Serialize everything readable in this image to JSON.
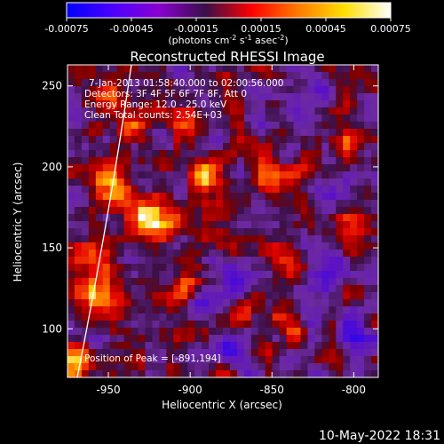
{
  "chart_data": {
    "type": "heatmap",
    "title": "Reconstructed RHESSI Image",
    "colorbar": {
      "ticks": [
        "-0.00075",
        "-0.00045",
        "-0.00015",
        "0.00015",
        "0.00045",
        "0.00075"
      ],
      "tick_values": [
        -0.00075,
        -0.00045,
        -0.00015,
        0.00015,
        0.00045,
        0.00075
      ],
      "range": [
        -0.00075,
        0.00075
      ],
      "label_prefix": "(photons cm",
      "label_sup1": "-2",
      "label_mid": " s",
      "label_sup2": "-1",
      "label_mid2": " asec",
      "label_sup3": "-2",
      "label_suffix": ")",
      "colormap": [
        "#0000ff",
        "#4b00ff",
        "#8a00d0",
        "#3a0f4a",
        "#ff0000",
        "#ff7a00",
        "#ffe000",
        "#ffffff"
      ]
    },
    "xlabel": "Heliocentric X (arcsec)",
    "ylabel": "Heliocentric Y (arcsec)",
    "x_ticks": [
      "-950",
      "-900",
      "-850",
      "-800"
    ],
    "x_tick_values": [
      -950,
      -900,
      -850,
      -800
    ],
    "y_ticks": [
      "100",
      "150",
      "200",
      "250"
    ],
    "y_tick_values": [
      100,
      150,
      200,
      250
    ],
    "xlim": [
      -975,
      -785
    ],
    "ylim": [
      70,
      263
    ],
    "peak": [
      -891,
      194
    ],
    "annotations": {
      "time": "7-Jan-2013 01:58:40.000 to 02:00:56.000",
      "detectors": "Detectors: 3F 4F 5F 6F 7F 8F, Att 0",
      "energy": "Energy Range: 12.0 - 25.0 keV",
      "clean": "Clean    Total counts: 2.54E+03",
      "peak_label": "Position of Peak = [-891,194]"
    },
    "sources": [
      {
        "x": -891,
        "y": 194,
        "sigma": 6,
        "amp": 1.0
      },
      {
        "x": -947,
        "y": 188,
        "sigma": 9,
        "amp": 0.75
      },
      {
        "x": -930,
        "y": 170,
        "sigma": 10,
        "amp": 0.7
      },
      {
        "x": -958,
        "y": 140,
        "sigma": 10,
        "amp": 0.75
      },
      {
        "x": -955,
        "y": 118,
        "sigma": 8,
        "amp": 0.8
      },
      {
        "x": -970,
        "y": 80,
        "sigma": 7,
        "amp": 0.95
      },
      {
        "x": -940,
        "y": 225,
        "sigma": 8,
        "amp": 0.65
      },
      {
        "x": -905,
        "y": 225,
        "sigma": 7,
        "amp": 0.6
      },
      {
        "x": -915,
        "y": 165,
        "sigma": 7,
        "amp": 0.55
      },
      {
        "x": -850,
        "y": 190,
        "sigma": 8,
        "amp": 0.6
      },
      {
        "x": -845,
        "y": 145,
        "sigma": 7,
        "amp": 0.6
      },
      {
        "x": -800,
        "y": 160,
        "sigma": 7,
        "amp": 0.55
      },
      {
        "x": -805,
        "y": 215,
        "sigma": 6,
        "amp": 0.5
      },
      {
        "x": -865,
        "y": 110,
        "sigma": 7,
        "amp": 0.55
      },
      {
        "x": -835,
        "y": 100,
        "sigma": 6,
        "amp": 0.45
      },
      {
        "x": -905,
        "y": 125,
        "sigma": 6,
        "amp": 0.45
      },
      {
        "x": -950,
        "y": 245,
        "sigma": 5,
        "amp": 0.5
      },
      {
        "x": -880,
        "y": 255,
        "sigma": 5,
        "amp": 0.4
      },
      {
        "x": -870,
        "y": 130,
        "sigma": 9,
        "amp": -0.5
      },
      {
        "x": -820,
        "y": 130,
        "sigma": 10,
        "amp": -0.55
      },
      {
        "x": -800,
        "y": 95,
        "sigma": 8,
        "amp": -0.6
      },
      {
        "x": -830,
        "y": 240,
        "sigma": 10,
        "amp": -0.45
      },
      {
        "x": -880,
        "y": 85,
        "sigma": 8,
        "amp": -0.45
      }
    ]
  },
  "footer": {
    "date": "10-May-2022 18:31"
  }
}
